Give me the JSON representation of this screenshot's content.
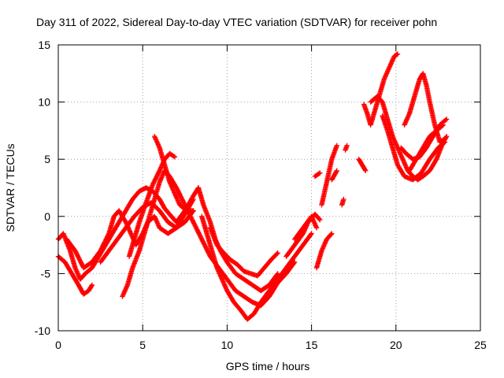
{
  "chart_data": {
    "type": "scatter",
    "title": "Day 311 of 2022, Sidereal Day-to-day VTEC variation (SDTVAR) for receiver pohn",
    "xlabel": "GPS time / hours",
    "ylabel": "SDTVAR / TECUs",
    "xlim": [
      0,
      25
    ],
    "ylim": [
      -10,
      15
    ],
    "x_ticks": [
      "0",
      "5",
      "10",
      "15",
      "20",
      "25"
    ],
    "y_ticks": [
      "-10",
      "-5",
      "0",
      "5",
      "10",
      "15"
    ],
    "grid": true,
    "marker": "+",
    "colors": {
      "series": "#ff0000",
      "axes": "#000000",
      "grid": "#a0a0a0"
    },
    "series": [
      {
        "points": [
          [
            0,
            -2
          ],
          [
            0.3,
            -1.5
          ],
          [
            0.7,
            -3
          ],
          [
            1,
            -4.5
          ],
          [
            1.3,
            -5.5
          ],
          [
            1.6,
            -5
          ],
          [
            2,
            -4.5
          ],
          [
            2.4,
            -3.5
          ],
          [
            2.8,
            -2.5
          ],
          [
            3.2,
            -1.5
          ],
          [
            3.6,
            -0.5
          ],
          [
            4,
            0.5
          ],
          [
            4.4,
            1.5
          ],
          [
            4.8,
            2.2
          ],
          [
            5.2,
            2.5
          ],
          [
            5.6,
            2.2
          ],
          [
            6,
            1.5
          ],
          [
            6.3,
            0.7
          ],
          [
            6.7,
            0
          ],
          [
            7,
            -0.5
          ],
          [
            7.5,
            0.5
          ],
          [
            8,
            1.8
          ],
          [
            8.3,
            2.5
          ]
        ]
      },
      {
        "points": [
          [
            0,
            -3.5
          ],
          [
            0.4,
            -4
          ],
          [
            0.8,
            -5
          ],
          [
            1.2,
            -6
          ],
          [
            1.5,
            -6.8
          ],
          [
            1.8,
            -6.5
          ],
          [
            2,
            -6
          ]
        ]
      },
      {
        "points": [
          [
            0.5,
            -2
          ],
          [
            1,
            -3
          ],
          [
            1.5,
            -4.5
          ],
          [
            2,
            -4
          ],
          [
            2.5,
            -3
          ],
          [
            3,
            -1.5
          ],
          [
            3.3,
            0
          ],
          [
            3.6,
            0.5
          ],
          [
            4,
            -0.5
          ],
          [
            4.3,
            -1.5
          ],
          [
            4.6,
            -2.5
          ],
          [
            5,
            -1.5
          ],
          [
            5.3,
            -0.5
          ],
          [
            5.7,
            0
          ],
          [
            6,
            -1
          ],
          [
            6.5,
            -1.5
          ],
          [
            7,
            -1
          ],
          [
            7.5,
            0.2
          ],
          [
            8,
            1.5
          ]
        ]
      },
      {
        "points": [
          [
            2.5,
            -4
          ],
          [
            3,
            -3
          ],
          [
            3.5,
            -2
          ],
          [
            4,
            -1
          ],
          [
            4.5,
            0
          ],
          [
            5,
            0.8
          ],
          [
            5.5,
            1.2
          ],
          [
            6,
            0.5
          ],
          [
            6.5,
            -0.5
          ],
          [
            7,
            -1
          ],
          [
            7.5,
            -0.5
          ],
          [
            8,
            0.5
          ]
        ]
      },
      {
        "points": [
          [
            3.8,
            -7
          ],
          [
            4.1,
            -6
          ],
          [
            4.4,
            -4.5
          ],
          [
            4.8,
            -3
          ],
          [
            5.2,
            -1
          ],
          [
            5.6,
            1
          ],
          [
            6,
            3
          ],
          [
            6.3,
            4
          ],
          [
            6.6,
            3.5
          ],
          [
            7,
            2.5
          ],
          [
            7.5,
            1
          ],
          [
            8,
            -0.5
          ],
          [
            8.5,
            -2
          ],
          [
            9,
            -3.5
          ],
          [
            9.5,
            -4.5
          ],
          [
            10,
            -5.5
          ],
          [
            10.5,
            -6.5
          ],
          [
            11,
            -7
          ],
          [
            11.5,
            -7.5
          ],
          [
            12,
            -7.8
          ],
          [
            12.5,
            -7
          ],
          [
            13,
            -5.8
          ],
          [
            13.5,
            -5
          ],
          [
            14,
            -4
          ]
        ]
      },
      {
        "points": [
          [
            4.2,
            -3.5
          ],
          [
            4.5,
            -2
          ],
          [
            4.8,
            -0.5
          ],
          [
            5.2,
            1.2
          ],
          [
            5.6,
            2.8
          ],
          [
            6,
            4
          ],
          [
            6.3,
            5
          ],
          [
            6.6,
            5.5
          ],
          [
            6.9,
            5.2
          ]
        ]
      },
      {
        "points": [
          [
            5.7,
            7
          ],
          [
            6,
            6
          ],
          [
            6.3,
            4.5
          ],
          [
            6.6,
            3
          ],
          [
            6.9,
            2
          ],
          [
            7.2,
            1
          ],
          [
            7.6,
            0.5
          ],
          [
            8,
            0.5
          ]
        ]
      },
      {
        "points": [
          [
            8.3,
            2.5
          ],
          [
            8.6,
            1
          ],
          [
            9,
            -0.5
          ],
          [
            9.3,
            -2
          ],
          [
            9.6,
            -3
          ],
          [
            10,
            -4
          ],
          [
            10.5,
            -5
          ],
          [
            11,
            -5.5
          ],
          [
            11.5,
            -6
          ],
          [
            12,
            -6.5
          ],
          [
            12.5,
            -6
          ],
          [
            13,
            -5
          ]
        ]
      },
      {
        "points": [
          [
            8.5,
            0
          ],
          [
            8.8,
            -1.5
          ],
          [
            9.1,
            -3
          ],
          [
            9.4,
            -4.5
          ],
          [
            9.7,
            -5.5
          ],
          [
            10,
            -6.5
          ],
          [
            10.4,
            -7.5
          ],
          [
            10.8,
            -8.2
          ],
          [
            11.2,
            -9
          ],
          [
            11.6,
            -8.5
          ],
          [
            12,
            -7.5
          ],
          [
            12.5,
            -6.5
          ],
          [
            13,
            -5.5
          ],
          [
            13.5,
            -4.5
          ],
          [
            14,
            -3.5
          ],
          [
            14.5,
            -2.5
          ],
          [
            15,
            -1.5
          ]
        ]
      },
      {
        "points": [
          [
            9,
            -1
          ],
          [
            9.4,
            -2.5
          ],
          [
            9.8,
            -3.2
          ],
          [
            10.2,
            -3.8
          ],
          [
            10.6,
            -4.2
          ],
          [
            11,
            -4.8
          ],
          [
            11.4,
            -5
          ],
          [
            11.8,
            -5.2
          ],
          [
            12.2,
            -4.5
          ],
          [
            12.6,
            -3.8
          ],
          [
            13,
            -3.2
          ]
        ]
      },
      {
        "points": [
          [
            13.5,
            -3.5
          ],
          [
            14,
            -2.5
          ],
          [
            14.5,
            -1.5
          ],
          [
            14.8,
            -0.5
          ],
          [
            15.2,
            0.2
          ],
          [
            15.5,
            -0.3
          ]
        ]
      },
      {
        "points": [
          [
            14,
            -2
          ],
          [
            14.5,
            -1
          ],
          [
            15,
            0
          ],
          [
            15.3,
            -1
          ]
        ]
      },
      {
        "points": [
          [
            15.3,
            -4.5
          ],
          [
            15.6,
            -3
          ],
          [
            15.9,
            -2
          ],
          [
            16.2,
            -1.5
          ]
        ]
      },
      {
        "points": [
          [
            15.6,
            1
          ],
          [
            15.9,
            3
          ],
          [
            16.2,
            5
          ],
          [
            16.5,
            6.2
          ]
        ]
      },
      {
        "points": [
          [
            15.2,
            3.5
          ],
          [
            15.5,
            3.8
          ]
        ]
      },
      {
        "points": [
          [
            16.2,
            3.2
          ],
          [
            16.5,
            4
          ]
        ]
      },
      {
        "points": [
          [
            16.8,
            1
          ],
          [
            16.9,
            1.5
          ]
        ]
      },
      {
        "points": [
          [
            17.0,
            5.8
          ],
          [
            17.1,
            6.2
          ]
        ]
      },
      {
        "points": [
          [
            17.8,
            5
          ],
          [
            18.0,
            4.5
          ],
          [
            18.2,
            4
          ]
        ]
      },
      {
        "points": [
          [
            18.1,
            9.8
          ],
          [
            18.3,
            9
          ],
          [
            18.5,
            8
          ],
          [
            18.7,
            9
          ],
          [
            19,
            10.5
          ],
          [
            19.3,
            12
          ],
          [
            19.6,
            13
          ],
          [
            19.9,
            14
          ],
          [
            20.1,
            14.2
          ]
        ]
      },
      {
        "points": [
          [
            18.5,
            10
          ],
          [
            18.9,
            10.5
          ],
          [
            19.2,
            10
          ],
          [
            19.5,
            8.5
          ],
          [
            19.8,
            7
          ],
          [
            20.1,
            6
          ],
          [
            20.4,
            5
          ],
          [
            20.7,
            4
          ],
          [
            21,
            3.5
          ],
          [
            21.3,
            3.2
          ],
          [
            21.6,
            3.5
          ],
          [
            22,
            4
          ],
          [
            22.4,
            5
          ],
          [
            22.8,
            6.5
          ],
          [
            23.0,
            7
          ]
        ]
      },
      {
        "points": [
          [
            19.2,
            8.8
          ],
          [
            19.5,
            7.5
          ],
          [
            19.8,
            6
          ],
          [
            20.1,
            4.5
          ],
          [
            20.5,
            3.5
          ],
          [
            21,
            3.2
          ],
          [
            21.5,
            3.8
          ],
          [
            22,
            5
          ],
          [
            22.5,
            6
          ],
          [
            22.9,
            6.5
          ]
        ]
      },
      {
        "points": [
          [
            20.5,
            8
          ],
          [
            20.8,
            9
          ],
          [
            21.1,
            10.5
          ],
          [
            21.4,
            12
          ],
          [
            21.6,
            12.5
          ],
          [
            21.8,
            11.5
          ],
          [
            22,
            10
          ],
          [
            22.3,
            8
          ],
          [
            22.6,
            6.5
          ],
          [
            22.9,
            6.8
          ]
        ]
      },
      {
        "points": [
          [
            20.3,
            6
          ],
          [
            20.6,
            5.5
          ],
          [
            21,
            5
          ],
          [
            21.4,
            5.2
          ],
          [
            21.8,
            6
          ],
          [
            22.2,
            7
          ],
          [
            22.6,
            8
          ],
          [
            23.0,
            8.5
          ]
        ]
      },
      {
        "points": [
          [
            20.8,
            4
          ],
          [
            21.2,
            5
          ],
          [
            21.6,
            6
          ],
          [
            22,
            7
          ],
          [
            22.4,
            7.5
          ],
          [
            22.8,
            8
          ]
        ]
      }
    ]
  }
}
